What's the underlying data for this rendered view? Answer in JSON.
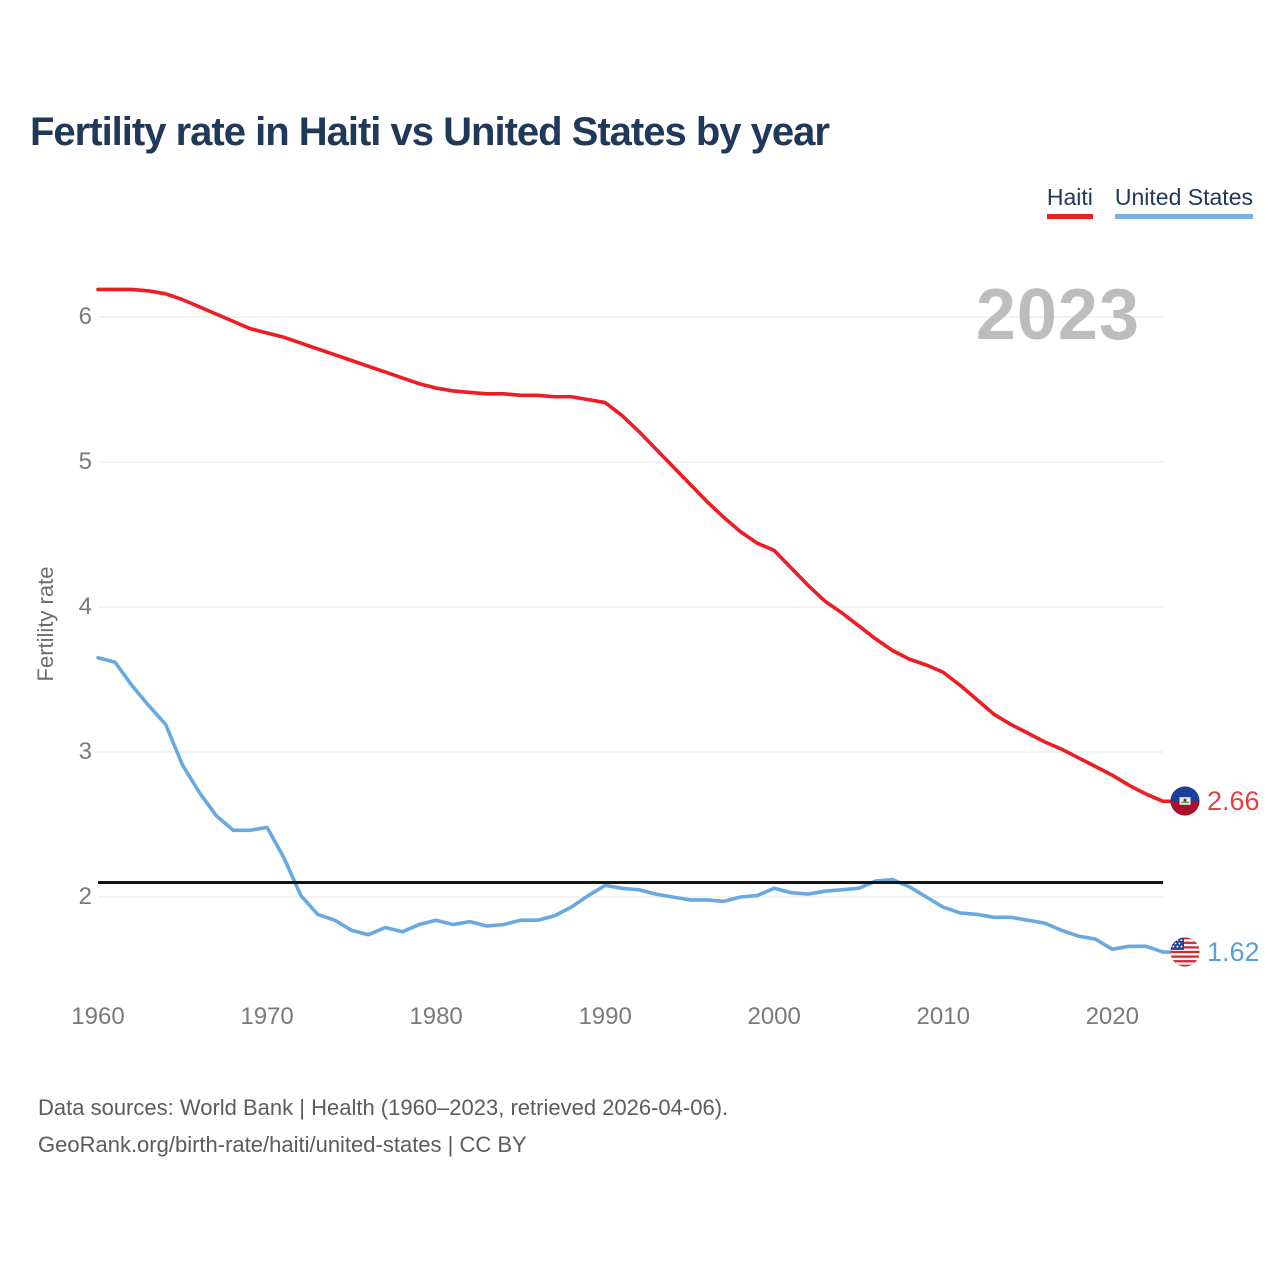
{
  "header": {
    "title": "Fertility rate in Haiti vs United States by year"
  },
  "legend": {
    "items": [
      {
        "label": "Haiti",
        "color": "#f01d22"
      },
      {
        "label": "United States",
        "color": "#79b1e2"
      }
    ]
  },
  "watermark": "2023",
  "axes": {
    "y_label": "Fertility rate",
    "y_ticks": [
      6,
      5,
      4,
      3,
      2
    ],
    "x_ticks": [
      1960,
      1970,
      1980,
      1990,
      2000,
      2010,
      2020
    ]
  },
  "reference_line": {
    "value": 2.1,
    "color": "#141414"
  },
  "colors": {
    "grid": "#ececec",
    "haiti_line": "#ee1c23",
    "us_line": "#69a9e2",
    "title_text": "#20395a",
    "tick_text": "#7a7a7a",
    "footer_text": "#5c5c5c",
    "watermark_text": "#bcbdbf"
  },
  "chart_data": {
    "type": "line",
    "title": "Fertility rate in Haiti vs United States by year",
    "xlabel": "",
    "ylabel": "Fertility rate",
    "xlim": [
      1960,
      2023
    ],
    "ylim": [
      1.4,
      6.4
    ],
    "grid": "horizontal",
    "legend_position": "top-right",
    "x": [
      1960,
      1961,
      1962,
      1963,
      1964,
      1965,
      1966,
      1967,
      1968,
      1969,
      1970,
      1971,
      1972,
      1973,
      1974,
      1975,
      1976,
      1977,
      1978,
      1979,
      1980,
      1981,
      1982,
      1983,
      1984,
      1985,
      1986,
      1987,
      1988,
      1989,
      1990,
      1991,
      1992,
      1993,
      1994,
      1995,
      1996,
      1997,
      1998,
      1999,
      2000,
      2001,
      2002,
      2003,
      2004,
      2005,
      2006,
      2007,
      2008,
      2009,
      2010,
      2011,
      2012,
      2013,
      2014,
      2015,
      2016,
      2017,
      2018,
      2019,
      2020,
      2021,
      2022,
      2023
    ],
    "series": [
      {
        "name": "Haiti",
        "color": "#ee1c23",
        "values": [
          6.19,
          6.19,
          6.19,
          6.18,
          6.16,
          6.12,
          6.07,
          6.02,
          5.97,
          5.92,
          5.89,
          5.86,
          5.82,
          5.78,
          5.74,
          5.7,
          5.66,
          5.62,
          5.58,
          5.54,
          5.51,
          5.49,
          5.48,
          5.47,
          5.47,
          5.46,
          5.46,
          5.45,
          5.45,
          5.43,
          5.41,
          5.32,
          5.21,
          5.09,
          4.97,
          4.85,
          4.73,
          4.62,
          4.52,
          4.44,
          4.39,
          4.27,
          4.15,
          4.04,
          3.96,
          3.87,
          3.78,
          3.7,
          3.64,
          3.6,
          3.55,
          3.46,
          3.36,
          3.26,
          3.19,
          3.13,
          3.07,
          3.02,
          2.96,
          2.9,
          2.84,
          2.77,
          2.71,
          2.66
        ]
      },
      {
        "name": "United States",
        "color": "#69a9e2",
        "values": [
          3.65,
          3.62,
          3.46,
          3.32,
          3.19,
          2.91,
          2.72,
          2.56,
          2.46,
          2.46,
          2.48,
          2.27,
          2.01,
          1.88,
          1.84,
          1.77,
          1.74,
          1.79,
          1.76,
          1.81,
          1.84,
          1.81,
          1.83,
          1.8,
          1.81,
          1.84,
          1.84,
          1.87,
          1.93,
          2.01,
          2.08,
          2.06,
          2.05,
          2.02,
          2.0,
          1.98,
          1.98,
          1.97,
          2.0,
          2.01,
          2.06,
          2.03,
          2.02,
          2.04,
          2.05,
          2.06,
          2.11,
          2.12,
          2.07,
          2.0,
          1.93,
          1.89,
          1.88,
          1.86,
          1.86,
          1.84,
          1.82,
          1.77,
          1.73,
          1.71,
          1.64,
          1.66,
          1.66,
          1.62
        ]
      }
    ],
    "annotations": {
      "watermark": "2023",
      "replacement_fertility_line": 2.1
    }
  },
  "end_labels": [
    {
      "series": "Haiti",
      "value": "2.66",
      "numeric": 2.66,
      "color": "#e2423d",
      "flag": "haiti-flag"
    },
    {
      "series": "United States",
      "value": "1.62",
      "numeric": 1.62,
      "color": "#58a0d8",
      "flag": "us-flag"
    }
  ],
  "footer": {
    "line1": "Data sources: World Bank | Health (1960–2023, retrieved 2026-04-06).",
    "line2": "GeoRank.org/birth-rate/haiti/united-states | CC BY"
  }
}
